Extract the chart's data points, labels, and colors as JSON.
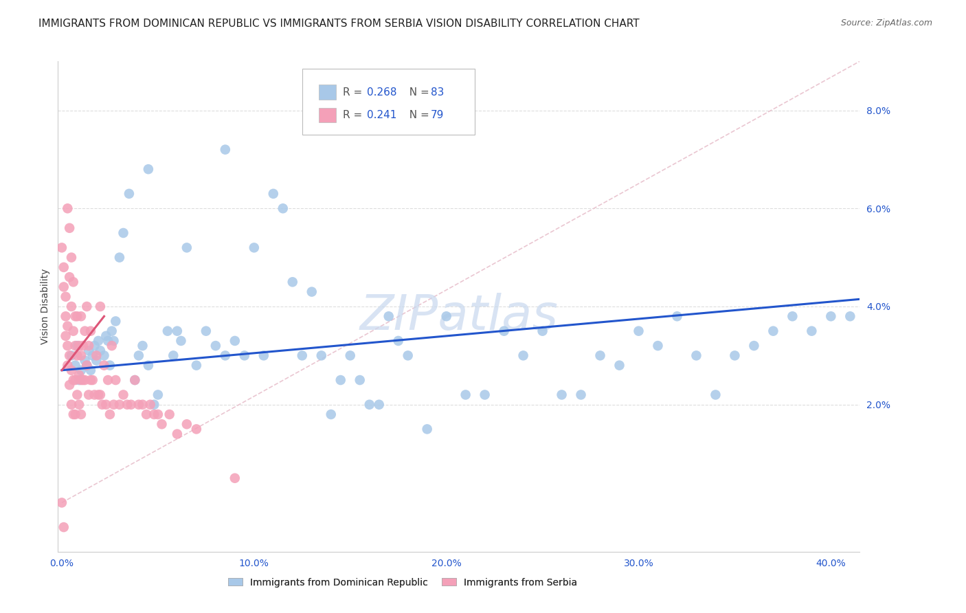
{
  "title": "IMMIGRANTS FROM DOMINICAN REPUBLIC VS IMMIGRANTS FROM SERBIA VISION DISABILITY CORRELATION CHART",
  "source": "Source: ZipAtlas.com",
  "xlabel_ticks": [
    "0.0%",
    "10.0%",
    "20.0%",
    "30.0%",
    "40.0%"
  ],
  "xlabel_tick_vals": [
    0.0,
    0.1,
    0.2,
    0.3,
    0.4
  ],
  "ylabel": "Vision Disability",
  "ylabel_ticks": [
    "2.0%",
    "4.0%",
    "6.0%",
    "8.0%"
  ],
  "ylabel_tick_vals": [
    0.02,
    0.04,
    0.06,
    0.08
  ],
  "xlim": [
    -0.002,
    0.415
  ],
  "ylim": [
    -0.01,
    0.09
  ],
  "color_blue": "#a8c8e8",
  "color_pink": "#f4a0b8",
  "color_blue_line": "#2255cc",
  "color_pink_line": "#dd5577",
  "color_diag_line": "#e8c0cc",
  "watermark": "ZIPatlas",
  "blue_x": [
    0.005,
    0.007,
    0.008,
    0.009,
    0.01,
    0.012,
    0.013,
    0.014,
    0.015,
    0.016,
    0.017,
    0.018,
    0.019,
    0.02,
    0.022,
    0.023,
    0.024,
    0.025,
    0.026,
    0.027,
    0.028,
    0.03,
    0.032,
    0.035,
    0.038,
    0.04,
    0.042,
    0.045,
    0.048,
    0.05,
    0.055,
    0.058,
    0.06,
    0.062,
    0.065,
    0.07,
    0.075,
    0.08,
    0.085,
    0.09,
    0.095,
    0.1,
    0.105,
    0.11,
    0.115,
    0.12,
    0.125,
    0.13,
    0.135,
    0.14,
    0.145,
    0.15,
    0.155,
    0.16,
    0.165,
    0.17,
    0.175,
    0.18,
    0.19,
    0.2,
    0.21,
    0.22,
    0.23,
    0.24,
    0.25,
    0.26,
    0.27,
    0.28,
    0.29,
    0.3,
    0.31,
    0.32,
    0.33,
    0.34,
    0.35,
    0.36,
    0.37,
    0.38,
    0.39,
    0.4,
    0.41,
    0.045,
    0.085
  ],
  "blue_y": [
    0.03,
    0.028,
    0.032,
    0.025,
    0.027,
    0.029,
    0.028,
    0.031,
    0.027,
    0.03,
    0.032,
    0.029,
    0.033,
    0.031,
    0.03,
    0.034,
    0.033,
    0.028,
    0.035,
    0.033,
    0.037,
    0.05,
    0.055,
    0.063,
    0.025,
    0.03,
    0.032,
    0.028,
    0.02,
    0.022,
    0.035,
    0.03,
    0.035,
    0.033,
    0.052,
    0.028,
    0.035,
    0.032,
    0.03,
    0.033,
    0.03,
    0.052,
    0.03,
    0.063,
    0.06,
    0.045,
    0.03,
    0.043,
    0.03,
    0.018,
    0.025,
    0.03,
    0.025,
    0.02,
    0.02,
    0.038,
    0.033,
    0.03,
    0.015,
    0.038,
    0.022,
    0.022,
    0.035,
    0.03,
    0.035,
    0.022,
    0.022,
    0.03,
    0.028,
    0.035,
    0.032,
    0.038,
    0.03,
    0.022,
    0.03,
    0.032,
    0.035,
    0.038,
    0.035,
    0.038,
    0.038,
    0.068,
    0.072
  ],
  "pink_x": [
    0.0,
    0.0,
    0.001,
    0.001,
    0.001,
    0.002,
    0.002,
    0.002,
    0.003,
    0.003,
    0.003,
    0.003,
    0.004,
    0.004,
    0.004,
    0.004,
    0.005,
    0.005,
    0.005,
    0.005,
    0.006,
    0.006,
    0.006,
    0.006,
    0.007,
    0.007,
    0.007,
    0.007,
    0.008,
    0.008,
    0.008,
    0.009,
    0.009,
    0.009,
    0.01,
    0.01,
    0.01,
    0.01,
    0.011,
    0.011,
    0.012,
    0.012,
    0.013,
    0.013,
    0.014,
    0.014,
    0.015,
    0.015,
    0.016,
    0.017,
    0.018,
    0.019,
    0.02,
    0.02,
    0.021,
    0.022,
    0.023,
    0.024,
    0.025,
    0.026,
    0.027,
    0.028,
    0.03,
    0.032,
    0.034,
    0.036,
    0.038,
    0.04,
    0.042,
    0.044,
    0.046,
    0.048,
    0.05,
    0.052,
    0.056,
    0.06,
    0.065,
    0.07,
    0.09
  ],
  "pink_y": [
    0.052,
    0.0,
    0.048,
    0.044,
    -0.005,
    0.042,
    0.038,
    0.034,
    0.06,
    0.036,
    0.032,
    0.028,
    0.056,
    0.046,
    0.03,
    0.024,
    0.05,
    0.04,
    0.027,
    0.02,
    0.045,
    0.035,
    0.025,
    0.018,
    0.038,
    0.032,
    0.025,
    0.018,
    0.038,
    0.03,
    0.022,
    0.032,
    0.026,
    0.02,
    0.038,
    0.03,
    0.025,
    0.018,
    0.032,
    0.025,
    0.035,
    0.025,
    0.04,
    0.028,
    0.032,
    0.022,
    0.035,
    0.025,
    0.025,
    0.022,
    0.03,
    0.022,
    0.04,
    0.022,
    0.02,
    0.028,
    0.02,
    0.025,
    0.018,
    0.032,
    0.02,
    0.025,
    0.02,
    0.022,
    0.02,
    0.02,
    0.025,
    0.02,
    0.02,
    0.018,
    0.02,
    0.018,
    0.018,
    0.016,
    0.018,
    0.014,
    0.016,
    0.015,
    0.005
  ],
  "blue_line_x": [
    0.0,
    0.415
  ],
  "blue_line_y": [
    0.027,
    0.0415
  ],
  "pink_line_x": [
    0.0,
    0.022
  ],
  "pink_line_y": [
    0.027,
    0.038
  ],
  "diag_line_x": [
    0.0,
    0.415
  ],
  "diag_line_y": [
    0.0,
    0.09
  ],
  "title_fontsize": 11,
  "source_fontsize": 9,
  "axis_label_fontsize": 10,
  "tick_fontsize": 10,
  "legend_fontsize": 11,
  "watermark_fontsize": 52,
  "watermark_color": "#c8d8ee",
  "background_color": "#ffffff",
  "grid_color": "#dddddd"
}
